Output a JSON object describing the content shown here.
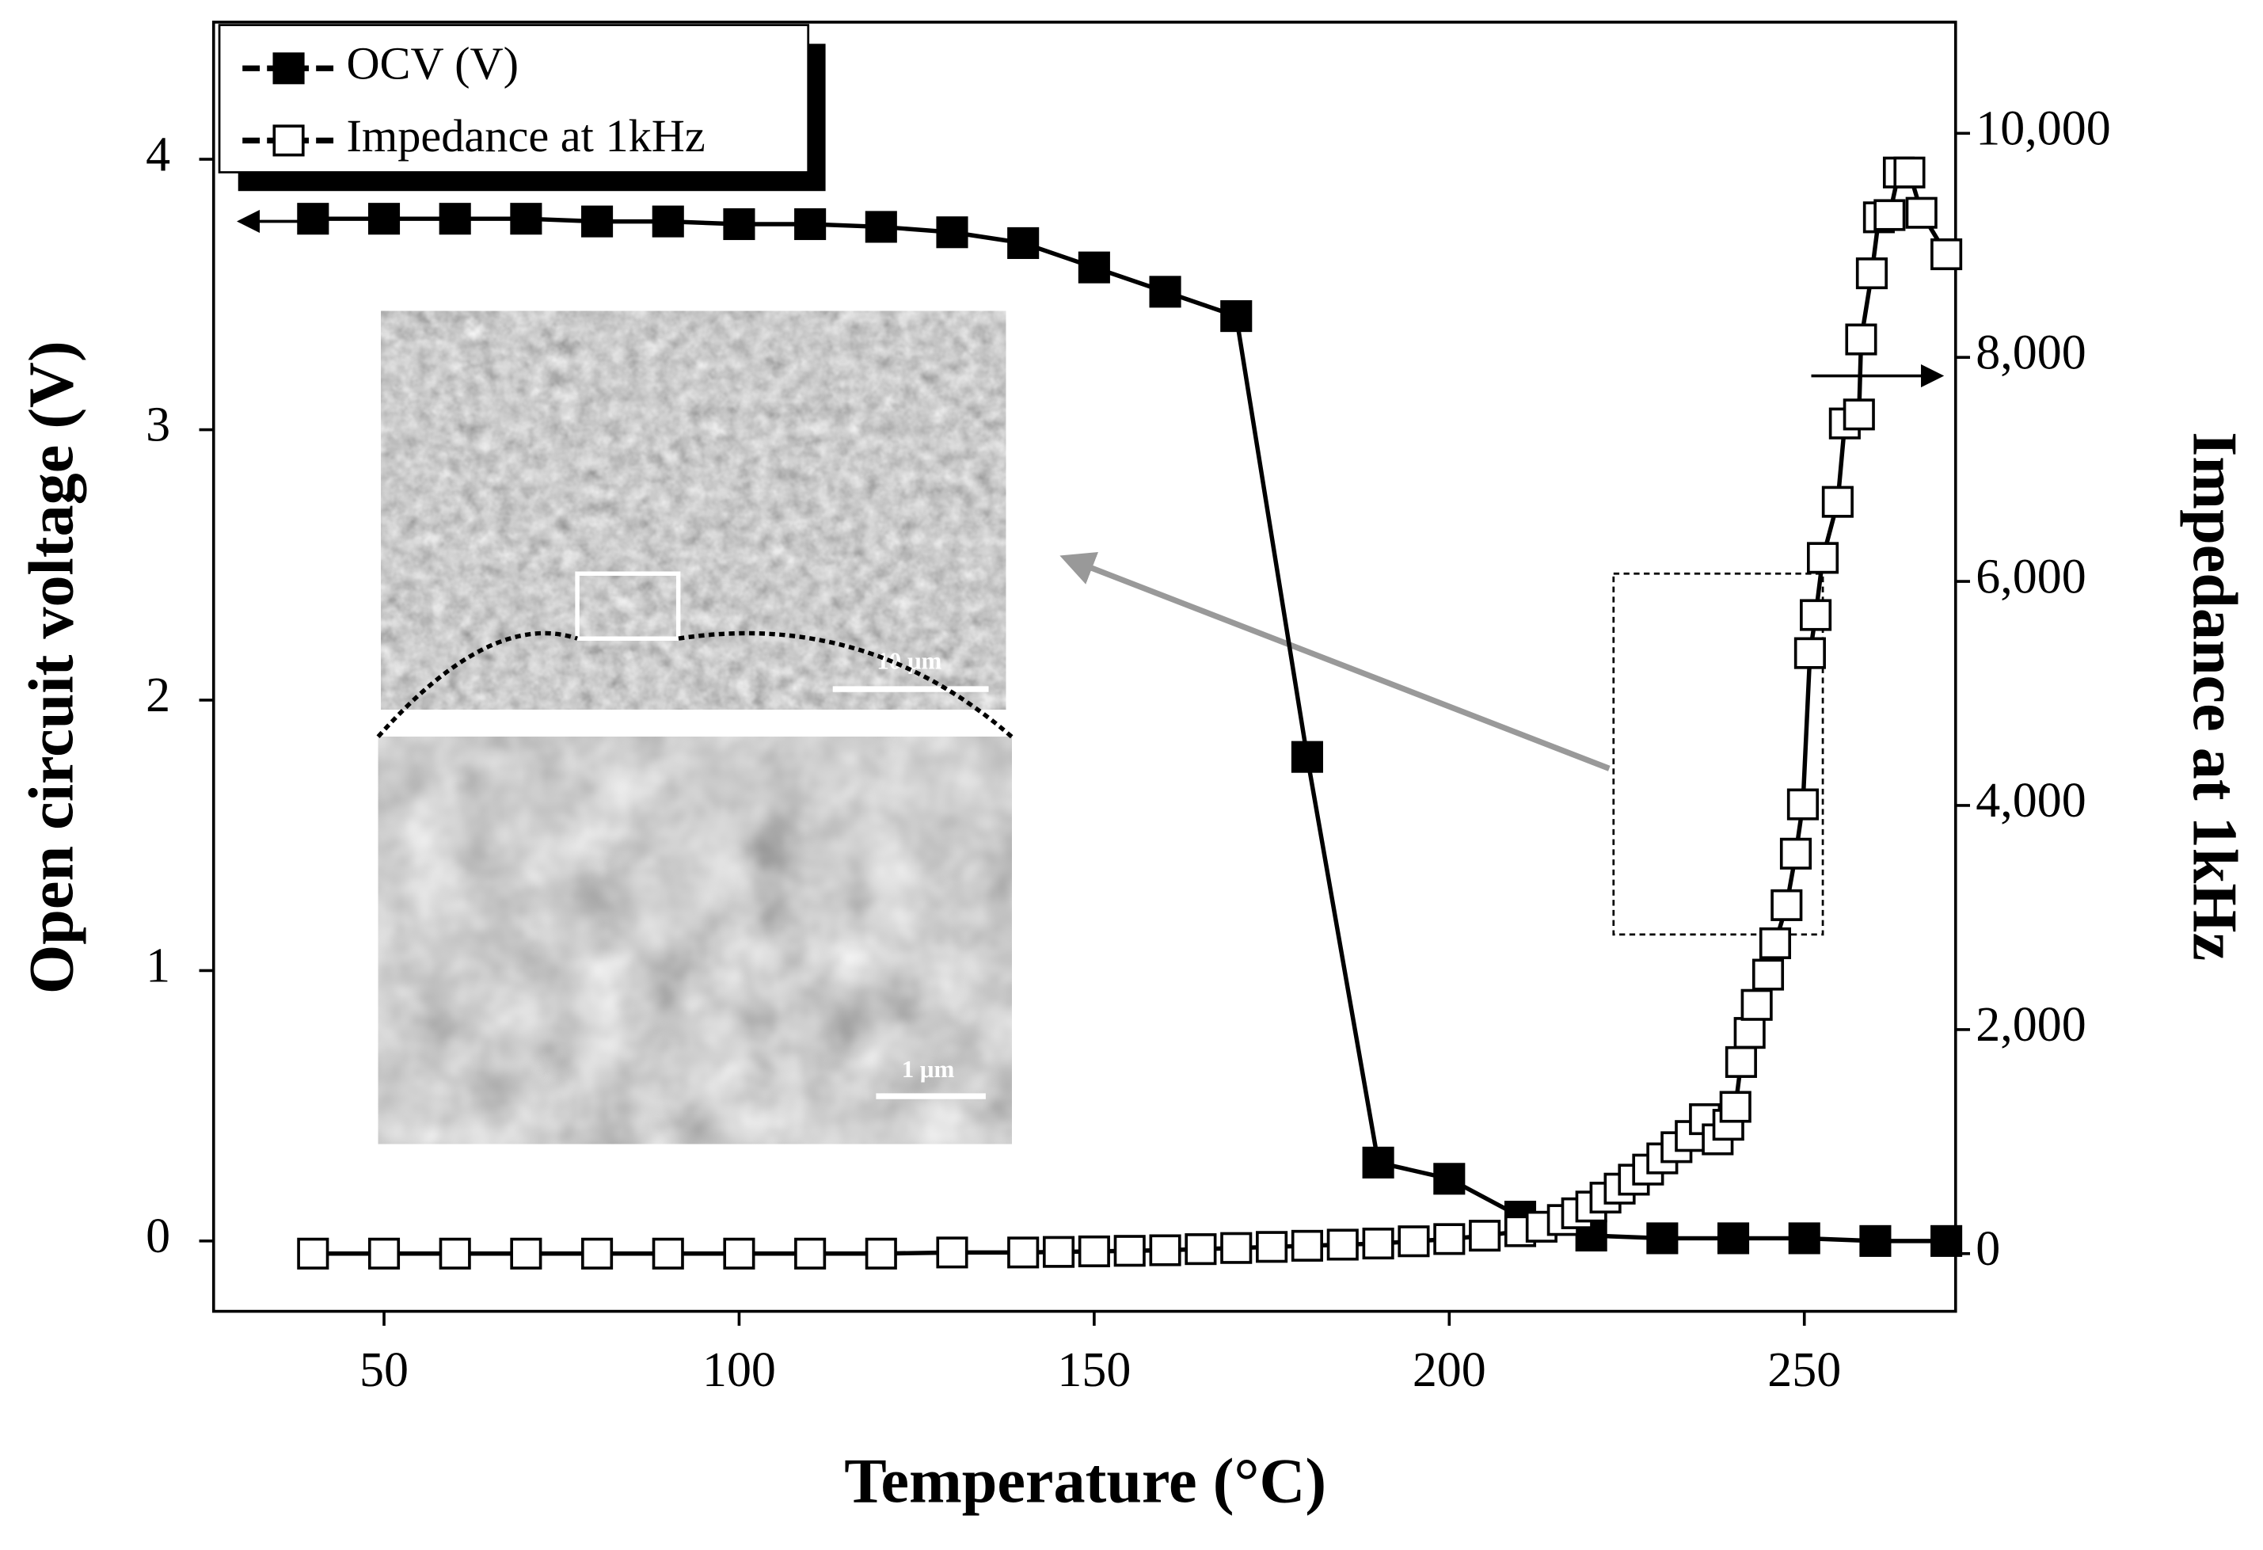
{
  "chart_data": {
    "type": "line",
    "x_label": "Temperature (°C)",
    "y_label": "Open circuit voltage (V)",
    "y2_label": "Impedance at 1kHz",
    "xlim": [
      26,
      271.3
    ],
    "xticks": [
      50,
      100,
      150,
      200,
      250
    ],
    "ylim": [
      -0.26,
      4.507
    ],
    "yticks": [
      0,
      1,
      2,
      3,
      4
    ],
    "y2lim": [
      -515,
      10992
    ],
    "y2ticks": [
      0,
      {
        "value": 2000,
        "label": "2,000"
      },
      {
        "value": 4000,
        "label": "4,000"
      },
      {
        "value": 6000,
        "label": "6,000"
      },
      {
        "value": 8000,
        "label": "8,000"
      },
      {
        "value": 10000,
        "label": "10,000"
      }
    ],
    "legend": "top-left",
    "series": [
      {
        "name": "OCV (V)",
        "color": "#000000",
        "marker": "filled-square",
        "x": [
          40,
          50,
          60,
          70,
          80,
          90,
          100,
          110,
          120,
          130,
          140,
          150,
          160,
          170,
          180,
          190,
          200,
          210,
          220,
          230,
          240,
          250,
          260,
          270
        ],
        "values": [
          3.78,
          3.78,
          3.78,
          3.78,
          3.77,
          3.77,
          3.76,
          3.76,
          3.75,
          3.73,
          3.69,
          3.6,
          3.51,
          3.42,
          1.79,
          0.29,
          0.23,
          0.09,
          0.02,
          0.01,
          0.01,
          0.01,
          0.0,
          0.0
        ]
      },
      {
        "name": "Impedance at 1kHz",
        "color": "#000000",
        "marker": "open-square",
        "axis": "y2",
        "x": [
          40,
          50,
          60,
          70,
          80,
          90,
          100,
          110,
          120,
          130,
          140,
          145,
          150,
          155,
          160,
          165,
          170,
          175,
          180,
          185,
          190,
          195,
          200,
          205,
          210,
          213,
          216,
          218,
          220,
          222,
          224,
          226,
          228,
          230,
          232,
          234,
          236,
          237.8,
          239.3,
          240.3,
          241.1,
          242.3,
          243.3,
          244.9,
          245.9,
          247.5,
          248.8,
          249.8,
          250.8,
          251.6,
          252.6,
          254.7,
          255.7,
          257.7,
          258,
          259.5,
          260.5,
          262,
          263.3,
          264.8,
          266.5,
          270
        ],
        "values": [
          0,
          0,
          0,
          0,
          0,
          0,
          0,
          0,
          0,
          10,
          10,
          15,
          20,
          25,
          30,
          40,
          50,
          60,
          70,
          80,
          90,
          110,
          130,
          160,
          200,
          240,
          300,
          360,
          420,
          500,
          580,
          660,
          750,
          850,
          950,
          1050,
          1200,
          1020,
          1150,
          1310,
          1710,
          1970,
          2220,
          2490,
          2770,
          3110,
          3570,
          4010,
          5360,
          5700,
          6210,
          6710,
          7410,
          7490,
          8160,
          8750,
          9250,
          9270,
          9650,
          9650,
          9290,
          8920
        ]
      }
    ],
    "annotations": [
      "10 μm",
      "1 μm"
    ]
  }
}
